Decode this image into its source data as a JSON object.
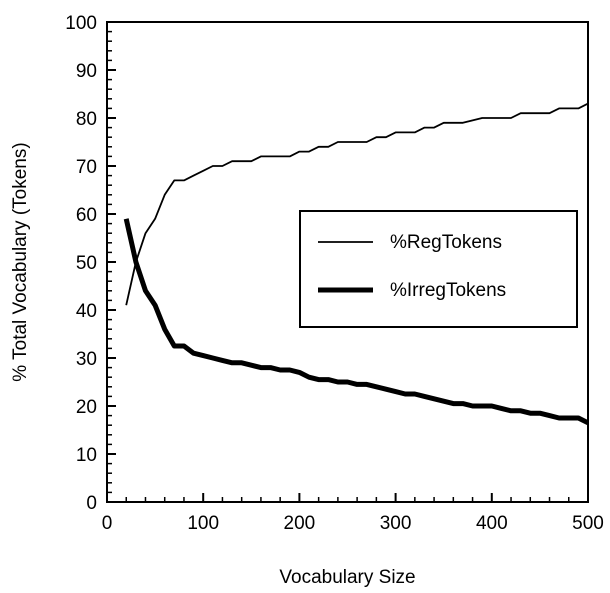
{
  "chart_data": {
    "type": "line",
    "title": "",
    "xlabel": "Vocabulary Size",
    "ylabel": "% Total Vocabulary (Tokens)",
    "xlim": [
      0,
      500
    ],
    "ylim": [
      0,
      100
    ],
    "x_ticks": [
      "0",
      "100",
      "200",
      "300",
      "400",
      "500"
    ],
    "y_ticks": [
      "0",
      "10",
      "20",
      "30",
      "40",
      "50",
      "60",
      "70",
      "80",
      "90",
      "100"
    ],
    "grid": false,
    "legend_position": "right-middle",
    "series": [
      {
        "name": "%RegTokens",
        "style": "thin",
        "color": "#000000",
        "x": [
          20,
          30,
          40,
          50,
          60,
          70,
          80,
          90,
          100,
          110,
          120,
          130,
          140,
          150,
          160,
          170,
          180,
          190,
          200,
          210,
          220,
          230,
          240,
          250,
          260,
          270,
          280,
          290,
          300,
          310,
          320,
          330,
          340,
          350,
          360,
          370,
          380,
          390,
          400,
          410,
          420,
          430,
          440,
          450,
          460,
          470,
          480,
          490,
          500
        ],
        "y": [
          41,
          50,
          56,
          59,
          64,
          67,
          67,
          68,
          69,
          70,
          70,
          71,
          71,
          71,
          72,
          72,
          72,
          72,
          73,
          73,
          74,
          74,
          75,
          75,
          75,
          75,
          76,
          76,
          77,
          77,
          77,
          78,
          78,
          79,
          79,
          79,
          79.5,
          80,
          80,
          80,
          80,
          81,
          81,
          81,
          81,
          82,
          82,
          82,
          83
        ]
      },
      {
        "name": "%IrregTokens",
        "style": "thick",
        "color": "#000000",
        "x": [
          20,
          30,
          40,
          50,
          60,
          70,
          80,
          90,
          100,
          110,
          120,
          130,
          140,
          150,
          160,
          170,
          180,
          190,
          200,
          210,
          220,
          230,
          240,
          250,
          260,
          270,
          280,
          290,
          300,
          310,
          320,
          330,
          340,
          350,
          360,
          370,
          380,
          390,
          400,
          410,
          420,
          430,
          440,
          450,
          460,
          470,
          480,
          490,
          500
        ],
        "y": [
          59,
          50,
          44,
          41,
          36,
          32.5,
          32.5,
          31,
          30.5,
          30,
          29.5,
          29,
          29,
          28.5,
          28,
          28,
          27.5,
          27.5,
          27,
          26,
          25.5,
          25.5,
          25,
          25,
          24.5,
          24.5,
          24,
          23.5,
          23,
          22.5,
          22.5,
          22,
          21.5,
          21,
          20.5,
          20.5,
          20,
          20,
          20,
          19.5,
          19,
          19,
          18.5,
          18.5,
          18,
          17.5,
          17.5,
          17.5,
          16.5
        ]
      }
    ]
  }
}
